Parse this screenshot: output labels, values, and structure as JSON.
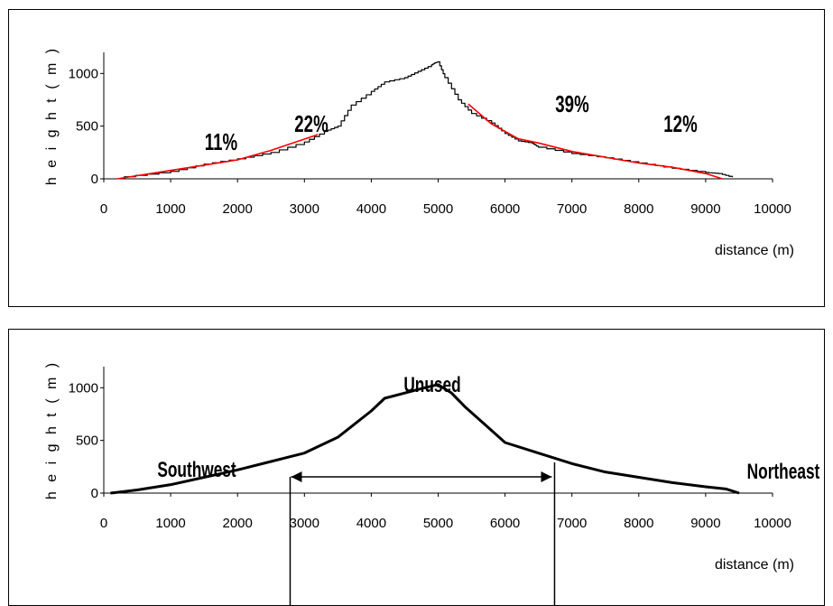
{
  "chart_data": [
    {
      "type": "line",
      "xlabel": "distance (m)",
      "ylabel": "h e i g h t  ( m )",
      "xlim": [
        0,
        10000
      ],
      "ylim": [
        0,
        1200
      ],
      "xticks": [
        "0",
        "1000",
        "2000",
        "3000",
        "4000",
        "5000",
        "6000",
        "7000",
        "8000",
        "9000",
        "10000"
      ],
      "yticks": [
        "0",
        "500",
        "1000"
      ],
      "series": [
        {
          "color": "#000000",
          "x": [
            300,
            1000,
            1500,
            2000,
            2500,
            3000,
            3300,
            3500,
            3700,
            4000,
            4200,
            4500,
            4700,
            4900,
            4950,
            5000,
            5100,
            5300,
            5500,
            5800,
            6000,
            6200,
            6400,
            6500,
            7000,
            7500,
            8000,
            8500,
            9000,
            9200,
            9400
          ],
          "y": [
            20,
            70,
            140,
            190,
            250,
            350,
            450,
            500,
            700,
            830,
            920,
            960,
            1020,
            1080,
            1100,
            1110,
            960,
            750,
            620,
            530,
            430,
            360,
            340,
            300,
            240,
            200,
            150,
            100,
            60,
            50,
            15
          ]
        },
        {
          "color": "#ff0000",
          "x": [
            200,
            1000,
            2000,
            2500,
            3200
          ],
          "y": [
            0,
            80,
            180,
            270,
            420
          ]
        },
        {
          "color": "#ff0000",
          "x": [
            5450,
            5800,
            6200,
            6500,
            7000,
            8000,
            8500,
            9000,
            9250
          ],
          "y": [
            710,
            520,
            380,
            340,
            260,
            150,
            110,
            50,
            0
          ]
        }
      ],
      "annotations": [
        "11%",
        "22%",
        "39%",
        "12%"
      ]
    },
    {
      "type": "line",
      "xlabel": "distance (m)",
      "ylabel": "h e i g h t  ( m )",
      "xlim": [
        0,
        10000
      ],
      "ylim": [
        0,
        1200
      ],
      "xticks": [
        "0",
        "1000",
        "2000",
        "3000",
        "4000",
        "5000",
        "6000",
        "7000",
        "8000",
        "9000",
        "10000"
      ],
      "yticks": [
        "0",
        "500",
        "1000"
      ],
      "series": [
        {
          "color": "#000000",
          "x": [
            100,
            500,
            1000,
            1500,
            2000,
            2500,
            3000,
            3500,
            4000,
            4200,
            4500,
            4800,
            5000,
            5200,
            5400,
            5700,
            6000,
            6500,
            7000,
            7500,
            8000,
            8500,
            9000,
            9300,
            9500
          ],
          "y": [
            0,
            30,
            80,
            150,
            220,
            300,
            380,
            530,
            780,
            900,
            950,
            1000,
            1030,
            950,
            820,
            650,
            480,
            380,
            280,
            200,
            150,
            100,
            60,
            40,
            0
          ]
        }
      ],
      "annotations": [
        "Southwest",
        "Unused",
        "Northeast"
      ],
      "range_marker": [
        2800,
        6700
      ]
    }
  ]
}
